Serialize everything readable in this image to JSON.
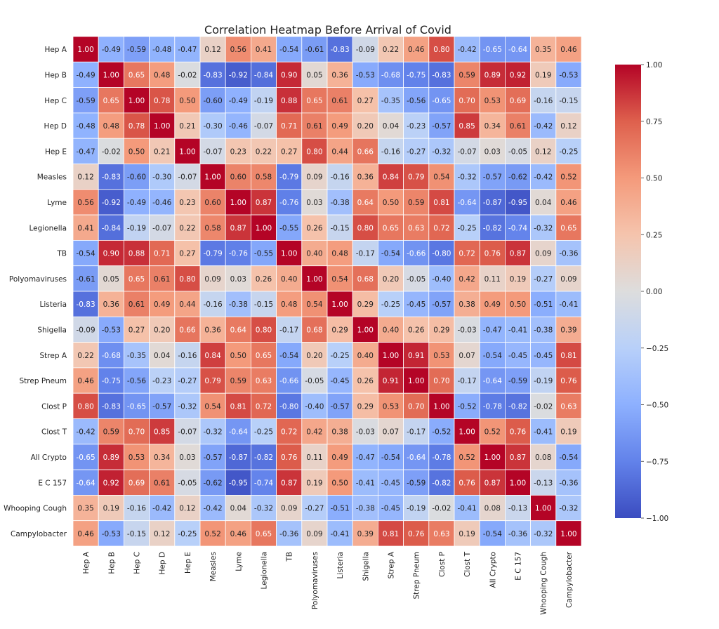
{
  "chart_data": {
    "type": "heatmap",
    "title": "Correlation Heatmap Before Arrival of Covid",
    "xlabel": "",
    "ylabel": "",
    "colormap": "coolwarm",
    "vmin": -1.0,
    "vmax": 1.0,
    "legend_position": "right",
    "colorbar_ticks": [
      "1.00",
      "0.75",
      "0.50",
      "0.25",
      "0.00",
      "−0.25",
      "−0.50",
      "−0.75",
      "−1.00"
    ],
    "colorbar_tick_values": [
      1.0,
      0.75,
      0.5,
      0.25,
      0.0,
      -0.25,
      -0.5,
      -0.75,
      -1.0
    ],
    "labels": [
      "Hep A",
      "Hep B",
      "Hep C",
      "Hep D",
      "Hep E",
      "Measles",
      "Lyme",
      "Legionella",
      "TB",
      "Polyomaviruses",
      "Listeria",
      "Shigella",
      "Strep A",
      "Strep Pneum",
      "Clost P",
      "Clost T",
      "All Crypto",
      "E C 157",
      "Whooping Cough",
      "Campylobacter"
    ],
    "matrix": [
      [
        1.0,
        -0.49,
        -0.59,
        -0.48,
        -0.47,
        0.12,
        0.56,
        0.41,
        -0.54,
        -0.61,
        -0.83,
        -0.09,
        0.22,
        0.46,
        0.8,
        -0.42,
        -0.65,
        -0.64,
        0.35,
        0.46
      ],
      [
        -0.49,
        1.0,
        0.65,
        0.48,
        -0.02,
        -0.83,
        -0.92,
        -0.84,
        0.9,
        0.05,
        0.36,
        -0.53,
        -0.68,
        -0.75,
        -0.83,
        0.59,
        0.89,
        0.92,
        0.19,
        -0.53
      ],
      [
        -0.59,
        0.65,
        1.0,
        0.78,
        0.5,
        -0.6,
        -0.49,
        -0.19,
        0.88,
        0.65,
        0.61,
        0.27,
        -0.35,
        -0.56,
        -0.65,
        0.7,
        0.53,
        0.69,
        -0.16,
        -0.15
      ],
      [
        -0.48,
        0.48,
        0.78,
        1.0,
        0.21,
        -0.3,
        -0.46,
        -0.07,
        0.71,
        0.61,
        0.49,
        0.2,
        0.04,
        -0.23,
        -0.57,
        0.85,
        0.34,
        0.61,
        -0.42,
        0.12
      ],
      [
        -0.47,
        -0.02,
        0.5,
        0.21,
        1.0,
        -0.07,
        0.23,
        0.22,
        0.27,
        0.8,
        0.44,
        0.66,
        -0.16,
        -0.27,
        -0.32,
        -0.07,
        0.03,
        -0.05,
        0.12,
        -0.25
      ],
      [
        0.12,
        -0.83,
        -0.6,
        -0.3,
        -0.07,
        1.0,
        0.6,
        0.58,
        -0.79,
        0.09,
        -0.16,
        0.36,
        0.84,
        0.79,
        0.54,
        -0.32,
        -0.57,
        -0.62,
        -0.42,
        0.52
      ],
      [
        0.56,
        -0.92,
        -0.49,
        -0.46,
        0.23,
        0.6,
        1.0,
        0.87,
        -0.76,
        0.03,
        -0.38,
        0.64,
        0.5,
        0.59,
        0.81,
        -0.64,
        -0.87,
        -0.95,
        0.04,
        0.46
      ],
      [
        0.41,
        -0.84,
        -0.19,
        -0.07,
        0.22,
        0.58,
        0.87,
        1.0,
        -0.55,
        0.26,
        -0.15,
        0.8,
        0.65,
        0.63,
        0.72,
        -0.25,
        -0.82,
        -0.74,
        -0.32,
        0.65
      ],
      [
        -0.54,
        0.9,
        0.88,
        0.71,
        0.27,
        -0.79,
        -0.76,
        -0.55,
        1.0,
        0.4,
        0.48,
        -0.17,
        -0.54,
        -0.66,
        -0.8,
        0.72,
        0.76,
        0.87,
        0.09,
        -0.36
      ],
      [
        -0.61,
        0.05,
        0.65,
        0.61,
        0.8,
        0.09,
        0.03,
        0.26,
        0.4,
        1.0,
        0.54,
        0.68,
        0.2,
        -0.05,
        -0.4,
        0.42,
        0.11,
        0.19,
        -0.27,
        0.09
      ],
      [
        -0.83,
        0.36,
        0.61,
        0.49,
        0.44,
        -0.16,
        -0.38,
        -0.15,
        0.48,
        0.54,
        1.0,
        0.29,
        -0.25,
        -0.45,
        -0.57,
        0.38,
        0.49,
        0.5,
        -0.51,
        -0.41
      ],
      [
        -0.09,
        -0.53,
        0.27,
        0.2,
        0.66,
        0.36,
        0.64,
        0.8,
        -0.17,
        0.68,
        0.29,
        1.0,
        0.4,
        0.26,
        0.29,
        -0.03,
        -0.47,
        -0.41,
        -0.38,
        0.39
      ],
      [
        0.22,
        -0.68,
        -0.35,
        0.04,
        -0.16,
        0.84,
        0.5,
        0.65,
        -0.54,
        0.2,
        -0.25,
        0.4,
        1.0,
        0.91,
        0.53,
        0.07,
        -0.54,
        -0.45,
        -0.45,
        0.81
      ],
      [
        0.46,
        -0.75,
        -0.56,
        -0.23,
        -0.27,
        0.79,
        0.59,
        0.63,
        -0.66,
        -0.05,
        -0.45,
        0.26,
        0.91,
        1.0,
        0.7,
        -0.17,
        -0.64,
        -0.59,
        -0.19,
        0.76
      ],
      [
        0.8,
        -0.83,
        -0.65,
        -0.57,
        -0.32,
        0.54,
        0.81,
        0.72,
        -0.8,
        -0.4,
        -0.57,
        0.29,
        0.53,
        0.7,
        1.0,
        -0.52,
        -0.78,
        -0.82,
        -0.02,
        0.63
      ],
      [
        -0.42,
        0.59,
        0.7,
        0.85,
        -0.07,
        -0.32,
        -0.64,
        -0.25,
        0.72,
        0.42,
        0.38,
        -0.03,
        0.07,
        -0.17,
        -0.52,
        1.0,
        0.52,
        0.76,
        -0.41,
        0.19
      ],
      [
        -0.65,
        0.89,
        0.53,
        0.34,
        0.03,
        -0.57,
        -0.87,
        -0.82,
        0.76,
        0.11,
        0.49,
        -0.47,
        -0.54,
        -0.64,
        -0.78,
        0.52,
        1.0,
        0.87,
        0.08,
        -0.54
      ],
      [
        -0.64,
        0.92,
        0.69,
        0.61,
        -0.05,
        -0.62,
        -0.95,
        -0.74,
        0.87,
        0.19,
        0.5,
        -0.41,
        -0.45,
        -0.59,
        -0.82,
        0.76,
        0.87,
        1.0,
        -0.13,
        -0.36
      ],
      [
        0.35,
        0.19,
        -0.16,
        -0.42,
        0.12,
        -0.42,
        0.04,
        -0.32,
        0.09,
        -0.27,
        -0.51,
        -0.38,
        -0.45,
        -0.19,
        -0.02,
        -0.41,
        0.08,
        -0.13,
        1.0,
        -0.32
      ],
      [
        0.46,
        -0.53,
        -0.15,
        0.12,
        -0.25,
        0.52,
        0.46,
        0.65,
        -0.36,
        0.09,
        -0.41,
        0.39,
        0.81,
        0.76,
        0.63,
        0.19,
        -0.54,
        -0.36,
        -0.32,
        1.0
      ]
    ]
  }
}
